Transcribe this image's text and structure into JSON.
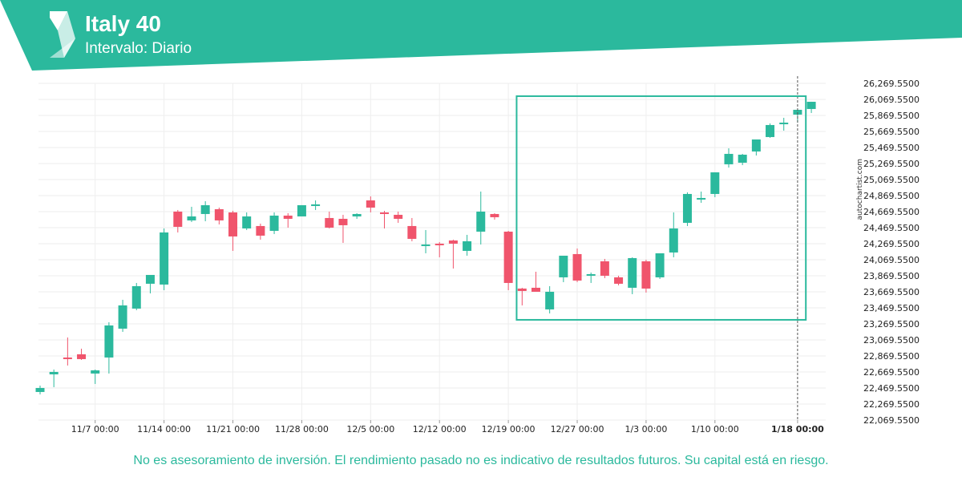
{
  "header": {
    "title": "Italy 40",
    "subtitle": "Intervalo: Diario",
    "logo_icon": "autochartist-chevron-logo",
    "band_color": "#2bb99d"
  },
  "watermark": "autochartist.com",
  "disclaimer": "No es asesoramiento de inversión. El rendimiento pasado no es indicativo de resultados futuros. Su capital está en riesgo.",
  "colors": {
    "up": "#2bb99d",
    "down": "#f0546c",
    "pattern_box": "#2bb99d",
    "grid": "#eeeeee"
  },
  "chart_data": {
    "type": "candlestick",
    "ylim": [
      22069.55,
      26269.55
    ],
    "y_ticks": [
      "26,269.5500",
      "26,069.5500",
      "25,869.5500",
      "25,669.5500",
      "25,469.5500",
      "25,269.5500",
      "25,069.5500",
      "24,869.5500",
      "24,669.5500",
      "24,469.5500",
      "24,269.5500",
      "24,069.5500",
      "23,869.5500",
      "23,669.5500",
      "23,469.5500",
      "23,269.5500",
      "23,069.5500",
      "22,869.5500",
      "22,669.5500",
      "22,469.5500",
      "22,269.5500",
      "22,069.5500"
    ],
    "x_ticks": [
      {
        "label": "11/7 00:00",
        "index": 4
      },
      {
        "label": "11/14 00:00",
        "index": 9
      },
      {
        "label": "11/21 00:00",
        "index": 14
      },
      {
        "label": "11/28 00:00",
        "index": 19
      },
      {
        "label": "12/5 00:00",
        "index": 24
      },
      {
        "label": "12/12 00:00",
        "index": 29
      },
      {
        "label": "12/19 00:00",
        "index": 34
      },
      {
        "label": "12/27 00:00",
        "index": 39
      },
      {
        "label": "1/3 00:00",
        "index": 44
      },
      {
        "label": "1/10 00:00",
        "index": 49
      },
      {
        "label": "1/18 00:00",
        "index": 55
      }
    ],
    "current_marker_index": 55,
    "candles": [
      {
        "o": 22420,
        "h": 22500,
        "l": 22390,
        "c": 22470
      },
      {
        "o": 22640,
        "h": 22700,
        "l": 22480,
        "c": 22670
      },
      {
        "o": 22850,
        "h": 23100,
        "l": 22750,
        "c": 22840
      },
      {
        "o": 22890,
        "h": 22960,
        "l": 22820,
        "c": 22830
      },
      {
        "o": 22650,
        "h": 22700,
        "l": 22520,
        "c": 22690
      },
      {
        "o": 22850,
        "h": 23290,
        "l": 22650,
        "c": 23250
      },
      {
        "o": 23210,
        "h": 23570,
        "l": 23170,
        "c": 23500
      },
      {
        "o": 23460,
        "h": 23780,
        "l": 23440,
        "c": 23740
      },
      {
        "o": 23770,
        "h": 23860,
        "l": 23650,
        "c": 23880
      },
      {
        "o": 23760,
        "h": 24460,
        "l": 23690,
        "c": 24410
      },
      {
        "o": 24670,
        "h": 24690,
        "l": 24410,
        "c": 24480
      },
      {
        "o": 24560,
        "h": 24730,
        "l": 24540,
        "c": 24610
      },
      {
        "o": 24640,
        "h": 24800,
        "l": 24550,
        "c": 24750
      },
      {
        "o": 24700,
        "h": 24720,
        "l": 24510,
        "c": 24560
      },
      {
        "o": 24660,
        "h": 24680,
        "l": 24180,
        "c": 24360
      },
      {
        "o": 24460,
        "h": 24660,
        "l": 24440,
        "c": 24610
      },
      {
        "o": 24490,
        "h": 24520,
        "l": 24320,
        "c": 24370
      },
      {
        "o": 24430,
        "h": 24660,
        "l": 24390,
        "c": 24620
      },
      {
        "o": 24620,
        "h": 24650,
        "l": 24470,
        "c": 24580
      },
      {
        "o": 24610,
        "h": 24750,
        "l": 24620,
        "c": 24750
      },
      {
        "o": 24760,
        "h": 24810,
        "l": 24690,
        "c": 24760
      },
      {
        "o": 24590,
        "h": 24670,
        "l": 24460,
        "c": 24470
      },
      {
        "o": 24580,
        "h": 24630,
        "l": 24280,
        "c": 24500
      },
      {
        "o": 24610,
        "h": 24650,
        "l": 24580,
        "c": 24640
      },
      {
        "o": 24810,
        "h": 24860,
        "l": 24660,
        "c": 24720
      },
      {
        "o": 24660,
        "h": 24680,
        "l": 24460,
        "c": 24650
      },
      {
        "o": 24630,
        "h": 24670,
        "l": 24530,
        "c": 24580
      },
      {
        "o": 24490,
        "h": 24590,
        "l": 24300,
        "c": 24330
      },
      {
        "o": 24250,
        "h": 24440,
        "l": 24150,
        "c": 24260
      },
      {
        "o": 24270,
        "h": 24290,
        "l": 24100,
        "c": 24250
      },
      {
        "o": 24310,
        "h": 24320,
        "l": 23960,
        "c": 24270
      },
      {
        "o": 24180,
        "h": 24380,
        "l": 24120,
        "c": 24300
      },
      {
        "o": 24420,
        "h": 24920,
        "l": 24260,
        "c": 24670
      },
      {
        "o": 24640,
        "h": 24650,
        "l": 24570,
        "c": 24600
      },
      {
        "o": 24420,
        "h": 24430,
        "l": 23690,
        "c": 23780
      },
      {
        "o": 23710,
        "h": 23720,
        "l": 23500,
        "c": 23680
      },
      {
        "o": 23720,
        "h": 23920,
        "l": 23680,
        "c": 23670
      },
      {
        "o": 23450,
        "h": 23740,
        "l": 23400,
        "c": 23670
      },
      {
        "o": 23850,
        "h": 24110,
        "l": 23790,
        "c": 24120
      },
      {
        "o": 24140,
        "h": 24210,
        "l": 23790,
        "c": 23810
      },
      {
        "o": 23870,
        "h": 23910,
        "l": 23780,
        "c": 23890
      },
      {
        "o": 24050,
        "h": 24080,
        "l": 23840,
        "c": 23870
      },
      {
        "o": 23850,
        "h": 23870,
        "l": 23750,
        "c": 23770
      },
      {
        "o": 23720,
        "h": 24100,
        "l": 23640,
        "c": 24090
      },
      {
        "o": 24050,
        "h": 24070,
        "l": 23660,
        "c": 23710
      },
      {
        "o": 23850,
        "h": 24140,
        "l": 23830,
        "c": 24150
      },
      {
        "o": 24160,
        "h": 24660,
        "l": 24100,
        "c": 24460
      },
      {
        "o": 24530,
        "h": 24910,
        "l": 24490,
        "c": 24890
      },
      {
        "o": 24840,
        "h": 24920,
        "l": 24780,
        "c": 24840
      },
      {
        "o": 24890,
        "h": 25160,
        "l": 24850,
        "c": 25160
      },
      {
        "o": 25260,
        "h": 25460,
        "l": 25220,
        "c": 25390
      },
      {
        "o": 25280,
        "h": 25390,
        "l": 25250,
        "c": 25380
      },
      {
        "o": 25420,
        "h": 25560,
        "l": 25370,
        "c": 25570
      },
      {
        "o": 25600,
        "h": 25770,
        "l": 25590,
        "c": 25750
      },
      {
        "o": 25780,
        "h": 25840,
        "l": 25680,
        "c": 25780
      },
      {
        "o": 25880,
        "h": 25930,
        "l": 25780,
        "c": 25940
      },
      {
        "o": 25950,
        "h": 26040,
        "l": 25900,
        "c": 26040
      }
    ],
    "pattern_box": {
      "start_index": 34.6,
      "end_index": 55.6,
      "top": 26110,
      "bottom": 23320
    }
  }
}
